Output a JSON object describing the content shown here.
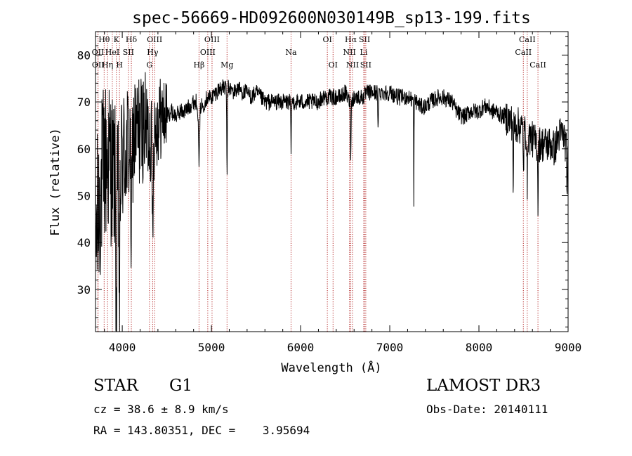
{
  "chart_data": {
    "type": "line",
    "title": "spec-56669-HD092600N030149B_sp13-199.fits",
    "xlabel": "Wavelength (Å)",
    "ylabel": "Flux (relative)",
    "xlim": [
      3700,
      9000
    ],
    "ylim": [
      21,
      85
    ],
    "xticks": [
      4000,
      5000,
      6000,
      7000,
      8000,
      9000
    ],
    "xtick_labels": [
      "4000",
      "5000",
      "6000",
      "7000",
      "8000",
      "9000"
    ],
    "yticks": [
      30,
      40,
      50,
      60,
      70,
      80
    ],
    "ytick_labels": [
      "30",
      "40",
      "50",
      "60",
      "70",
      "80"
    ],
    "grid": false,
    "line_color": "#000000",
    "marker_color": "#b22222",
    "lines": [
      {
        "label": "Hθ",
        "x": 3797,
        "row": 0
      },
      {
        "label": "OII",
        "x": 3727,
        "row": 1
      },
      {
        "label": "OII",
        "x": 3729,
        "row": 2
      },
      {
        "label": "K",
        "x": 3934,
        "row": 0
      },
      {
        "label": "HeI",
        "x": 3889,
        "row": 1
      },
      {
        "label": "Hη",
        "x": 3835,
        "row": 2
      },
      {
        "label": "Hδ",
        "x": 4102,
        "row": 0
      },
      {
        "label": "SII",
        "x": 4069,
        "row": 1
      },
      {
        "label": "H",
        "x": 3969,
        "row": 2
      },
      {
        "label": "OIII",
        "x": 4363,
        "row": 0
      },
      {
        "label": "Hγ",
        "x": 4341,
        "row": 1
      },
      {
        "label": "G",
        "x": 4305,
        "row": 2
      },
      {
        "label": "OIII",
        "x": 5007,
        "row": 0
      },
      {
        "label": "OIII",
        "x": 4959,
        "row": 1
      },
      {
        "label": "Hβ",
        "x": 4861,
        "row": 2
      },
      {
        "label": "Mg",
        "x": 5175,
        "row": 2
      },
      {
        "label": "Na",
        "x": 5893,
        "row": 1
      },
      {
        "label": "OI",
        "x": 6300,
        "row": 0
      },
      {
        "label": "OI",
        "x": 6364,
        "row": 2
      },
      {
        "label": "Hα",
        "x": 6563,
        "row": 0
      },
      {
        "label": "SII",
        "x": 6717,
        "row": 0
      },
      {
        "label": "NII",
        "x": 6548,
        "row": 1
      },
      {
        "label": "Li",
        "x": 6708,
        "row": 1
      },
      {
        "label": "NII",
        "x": 6583,
        "row": 2
      },
      {
        "label": "SII",
        "x": 6731,
        "row": 2
      },
      {
        "label": "CaII",
        "x": 8542,
        "row": 0
      },
      {
        "label": "CaII",
        "x": 8498,
        "row": 1
      },
      {
        "label": "CaII",
        "x": 8662,
        "row": 2
      }
    ],
    "continuum": [
      [
        3700,
        40
      ],
      [
        3750,
        50
      ],
      [
        3800,
        57
      ],
      [
        3850,
        58
      ],
      [
        3900,
        55
      ],
      [
        3950,
        52
      ],
      [
        4000,
        58
      ],
      [
        4050,
        60
      ],
      [
        4100,
        62
      ],
      [
        4150,
        63
      ],
      [
        4200,
        64
      ],
      [
        4250,
        65
      ],
      [
        4300,
        63
      ],
      [
        4350,
        64
      ],
      [
        4400,
        66
      ],
      [
        4450,
        67
      ],
      [
        4500,
        67
      ],
      [
        4550,
        68
      ],
      [
        4600,
        67
      ],
      [
        4650,
        68
      ],
      [
        4700,
        68
      ],
      [
        4750,
        69
      ],
      [
        4800,
        70
      ],
      [
        4850,
        70
      ],
      [
        4900,
        69
      ],
      [
        4950,
        71
      ],
      [
        5000,
        71
      ],
      [
        5050,
        72
      ],
      [
        5100,
        73
      ],
      [
        5150,
        73
      ],
      [
        5200,
        73
      ],
      [
        5250,
        72
      ],
      [
        5300,
        73
      ],
      [
        5350,
        72
      ],
      [
        5400,
        72
      ],
      [
        5450,
        71
      ],
      [
        5500,
        72
      ],
      [
        5550,
        71
      ],
      [
        5600,
        70
      ],
      [
        5650,
        70
      ],
      [
        5700,
        70
      ],
      [
        5750,
        70
      ],
      [
        5800,
        70
      ],
      [
        5850,
        70
      ],
      [
        5900,
        70
      ],
      [
        5950,
        70
      ],
      [
        6000,
        70
      ],
      [
        6050,
        70
      ],
      [
        6100,
        70
      ],
      [
        6150,
        70
      ],
      [
        6200,
        70
      ],
      [
        6250,
        71
      ],
      [
        6300,
        71
      ],
      [
        6350,
        71
      ],
      [
        6400,
        71
      ],
      [
        6450,
        71
      ],
      [
        6500,
        72
      ],
      [
        6550,
        70
      ],
      [
        6600,
        71
      ],
      [
        6650,
        71
      ],
      [
        6700,
        71
      ],
      [
        6750,
        72
      ],
      [
        6800,
        72
      ],
      [
        6850,
        72
      ],
      [
        6900,
        72
      ],
      [
        6950,
        72
      ],
      [
        7000,
        72
      ],
      [
        7050,
        71.5
      ],
      [
        7100,
        71
      ],
      [
        7150,
        71
      ],
      [
        7200,
        71
      ],
      [
        7250,
        70.5
      ],
      [
        7300,
        70
      ],
      [
        7350,
        69
      ],
      [
        7400,
        69
      ],
      [
        7450,
        70
      ],
      [
        7500,
        70.5
      ],
      [
        7550,
        71
      ],
      [
        7600,
        71
      ],
      [
        7650,
        70.5
      ],
      [
        7700,
        70
      ],
      [
        7750,
        68
      ],
      [
        7800,
        67
      ],
      [
        7850,
        67
      ],
      [
        7900,
        68
      ],
      [
        7950,
        68
      ],
      [
        8000,
        68
      ],
      [
        8050,
        69
      ],
      [
        8100,
        69
      ],
      [
        8150,
        68
      ],
      [
        8200,
        68
      ],
      [
        8250,
        67
      ],
      [
        8300,
        67
      ],
      [
        8350,
        66
      ],
      [
        8400,
        65
      ],
      [
        8450,
        65
      ],
      [
        8500,
        64
      ],
      [
        8550,
        63
      ],
      [
        8600,
        62
      ],
      [
        8650,
        61
      ],
      [
        8700,
        61
      ],
      [
        8750,
        61
      ],
      [
        8800,
        61
      ],
      [
        8850,
        60
      ],
      [
        8900,
        63
      ],
      [
        8950,
        63
      ],
      [
        9000,
        58
      ]
    ],
    "features": [
      {
        "x": 3934,
        "depth": 30,
        "width": 8
      },
      {
        "x": 3969,
        "depth": 28,
        "width": 8
      },
      {
        "x": 4102,
        "depth": 20,
        "width": 10
      },
      {
        "x": 4340,
        "depth": 18,
        "width": 10
      },
      {
        "x": 4861,
        "depth": 12,
        "width": 10
      },
      {
        "x": 5175,
        "depth": 18,
        "width": 5
      },
      {
        "x": 5893,
        "depth": 12,
        "width": 4
      },
      {
        "x": 6563,
        "depth": 12,
        "width": 5
      },
      {
        "x": 6870,
        "depth": 8,
        "width": 6
      },
      {
        "x": 7270,
        "depth": 21,
        "width": 3
      },
      {
        "x": 8385,
        "depth": 17,
        "width": 4
      },
      {
        "x": 8500,
        "depth": 10,
        "width": 4
      },
      {
        "x": 8542,
        "depth": 14,
        "width": 4
      },
      {
        "x": 8662,
        "depth": 13,
        "width": 4
      },
      {
        "x": 8990,
        "depth": 7,
        "width": 6
      }
    ],
    "noise_amplitude": 1.8,
    "sample_step_angstrom": 3
  },
  "footer": {
    "object_type": "STAR",
    "subclass": "G1",
    "cz": "cz = 38.6 ± 8.9 km/s",
    "coords": "RA = 143.80351, DEC =    3.95694",
    "survey": "LAMOST DR3",
    "obs_date": "Obs-Date: 20140111"
  }
}
